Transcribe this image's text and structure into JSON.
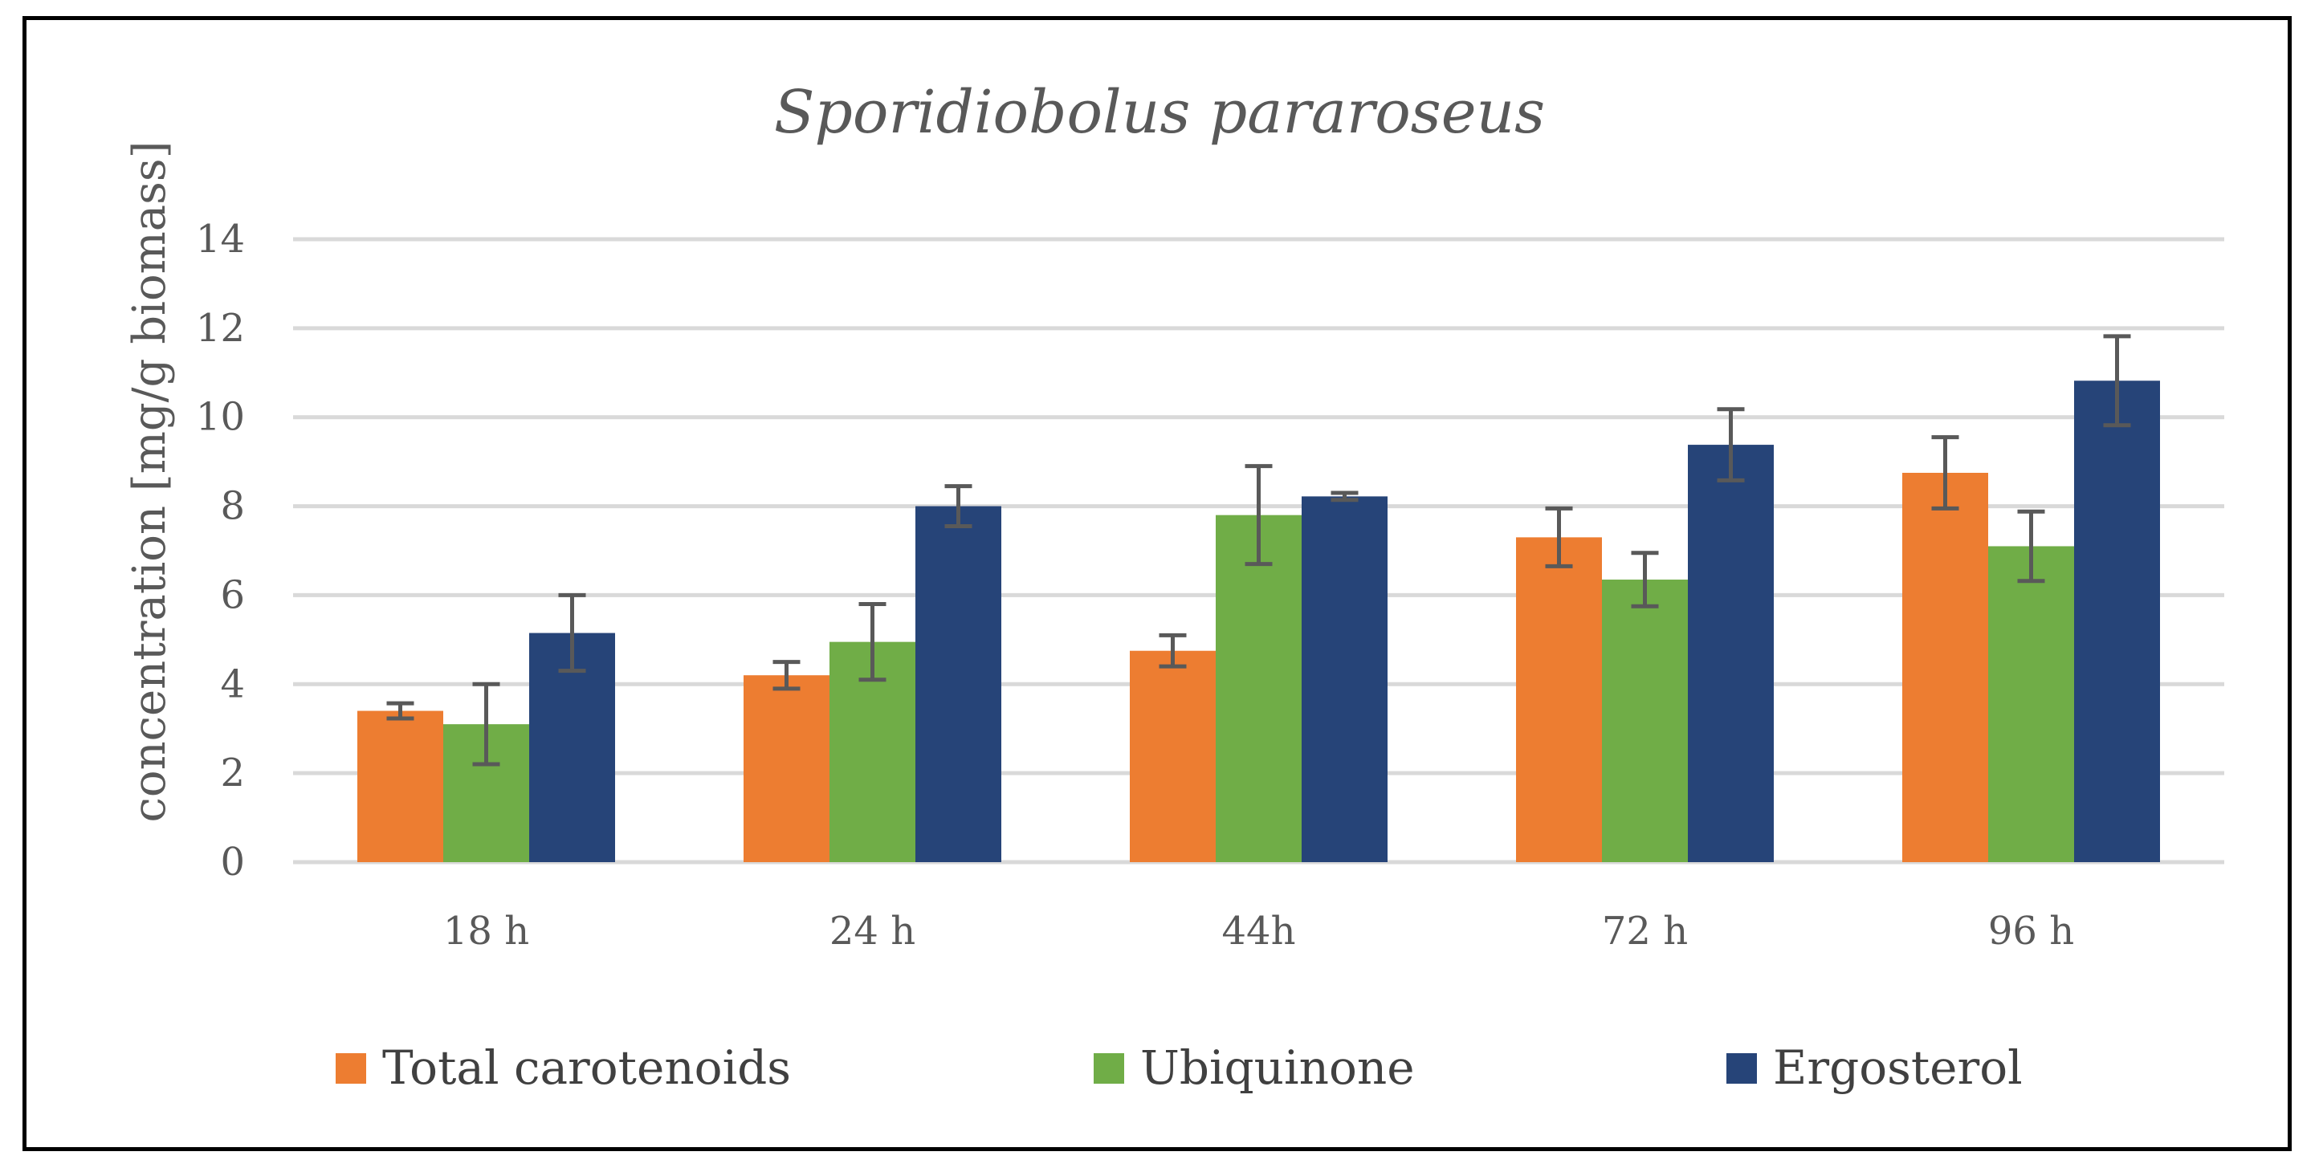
{
  "chart_data": {
    "type": "bar",
    "title": "Sporidiobolus pararoseus",
    "xlabel": "",
    "ylabel": "concentration [mg/g biomass]",
    "ylim": [
      0,
      14
    ],
    "yticks": [
      0,
      2,
      4,
      6,
      8,
      10,
      12,
      14
    ],
    "categories": [
      "18 h",
      "24 h",
      "44h",
      "72 h",
      "96 h"
    ],
    "grid": true,
    "legend_position": "bottom",
    "series": [
      {
        "name": "Total carotenoids",
        "color": "#ed7d31",
        "values": [
          3.4,
          4.2,
          4.75,
          7.3,
          8.75
        ],
        "errors": [
          0.17,
          0.3,
          0.35,
          0.65,
          0.8
        ]
      },
      {
        "name": "Ubiquinone",
        "color": "#70ad47",
        "values": [
          3.1,
          4.95,
          7.8,
          6.35,
          7.1
        ],
        "errors": [
          0.9,
          0.85,
          1.1,
          0.6,
          0.78
        ]
      },
      {
        "name": "Ergosterol",
        "color": "#264478",
        "values": [
          5.15,
          8.0,
          8.22,
          9.38,
          10.82
        ],
        "errors": [
          0.85,
          0.45,
          0.08,
          0.8,
          1.0
        ]
      }
    ]
  }
}
